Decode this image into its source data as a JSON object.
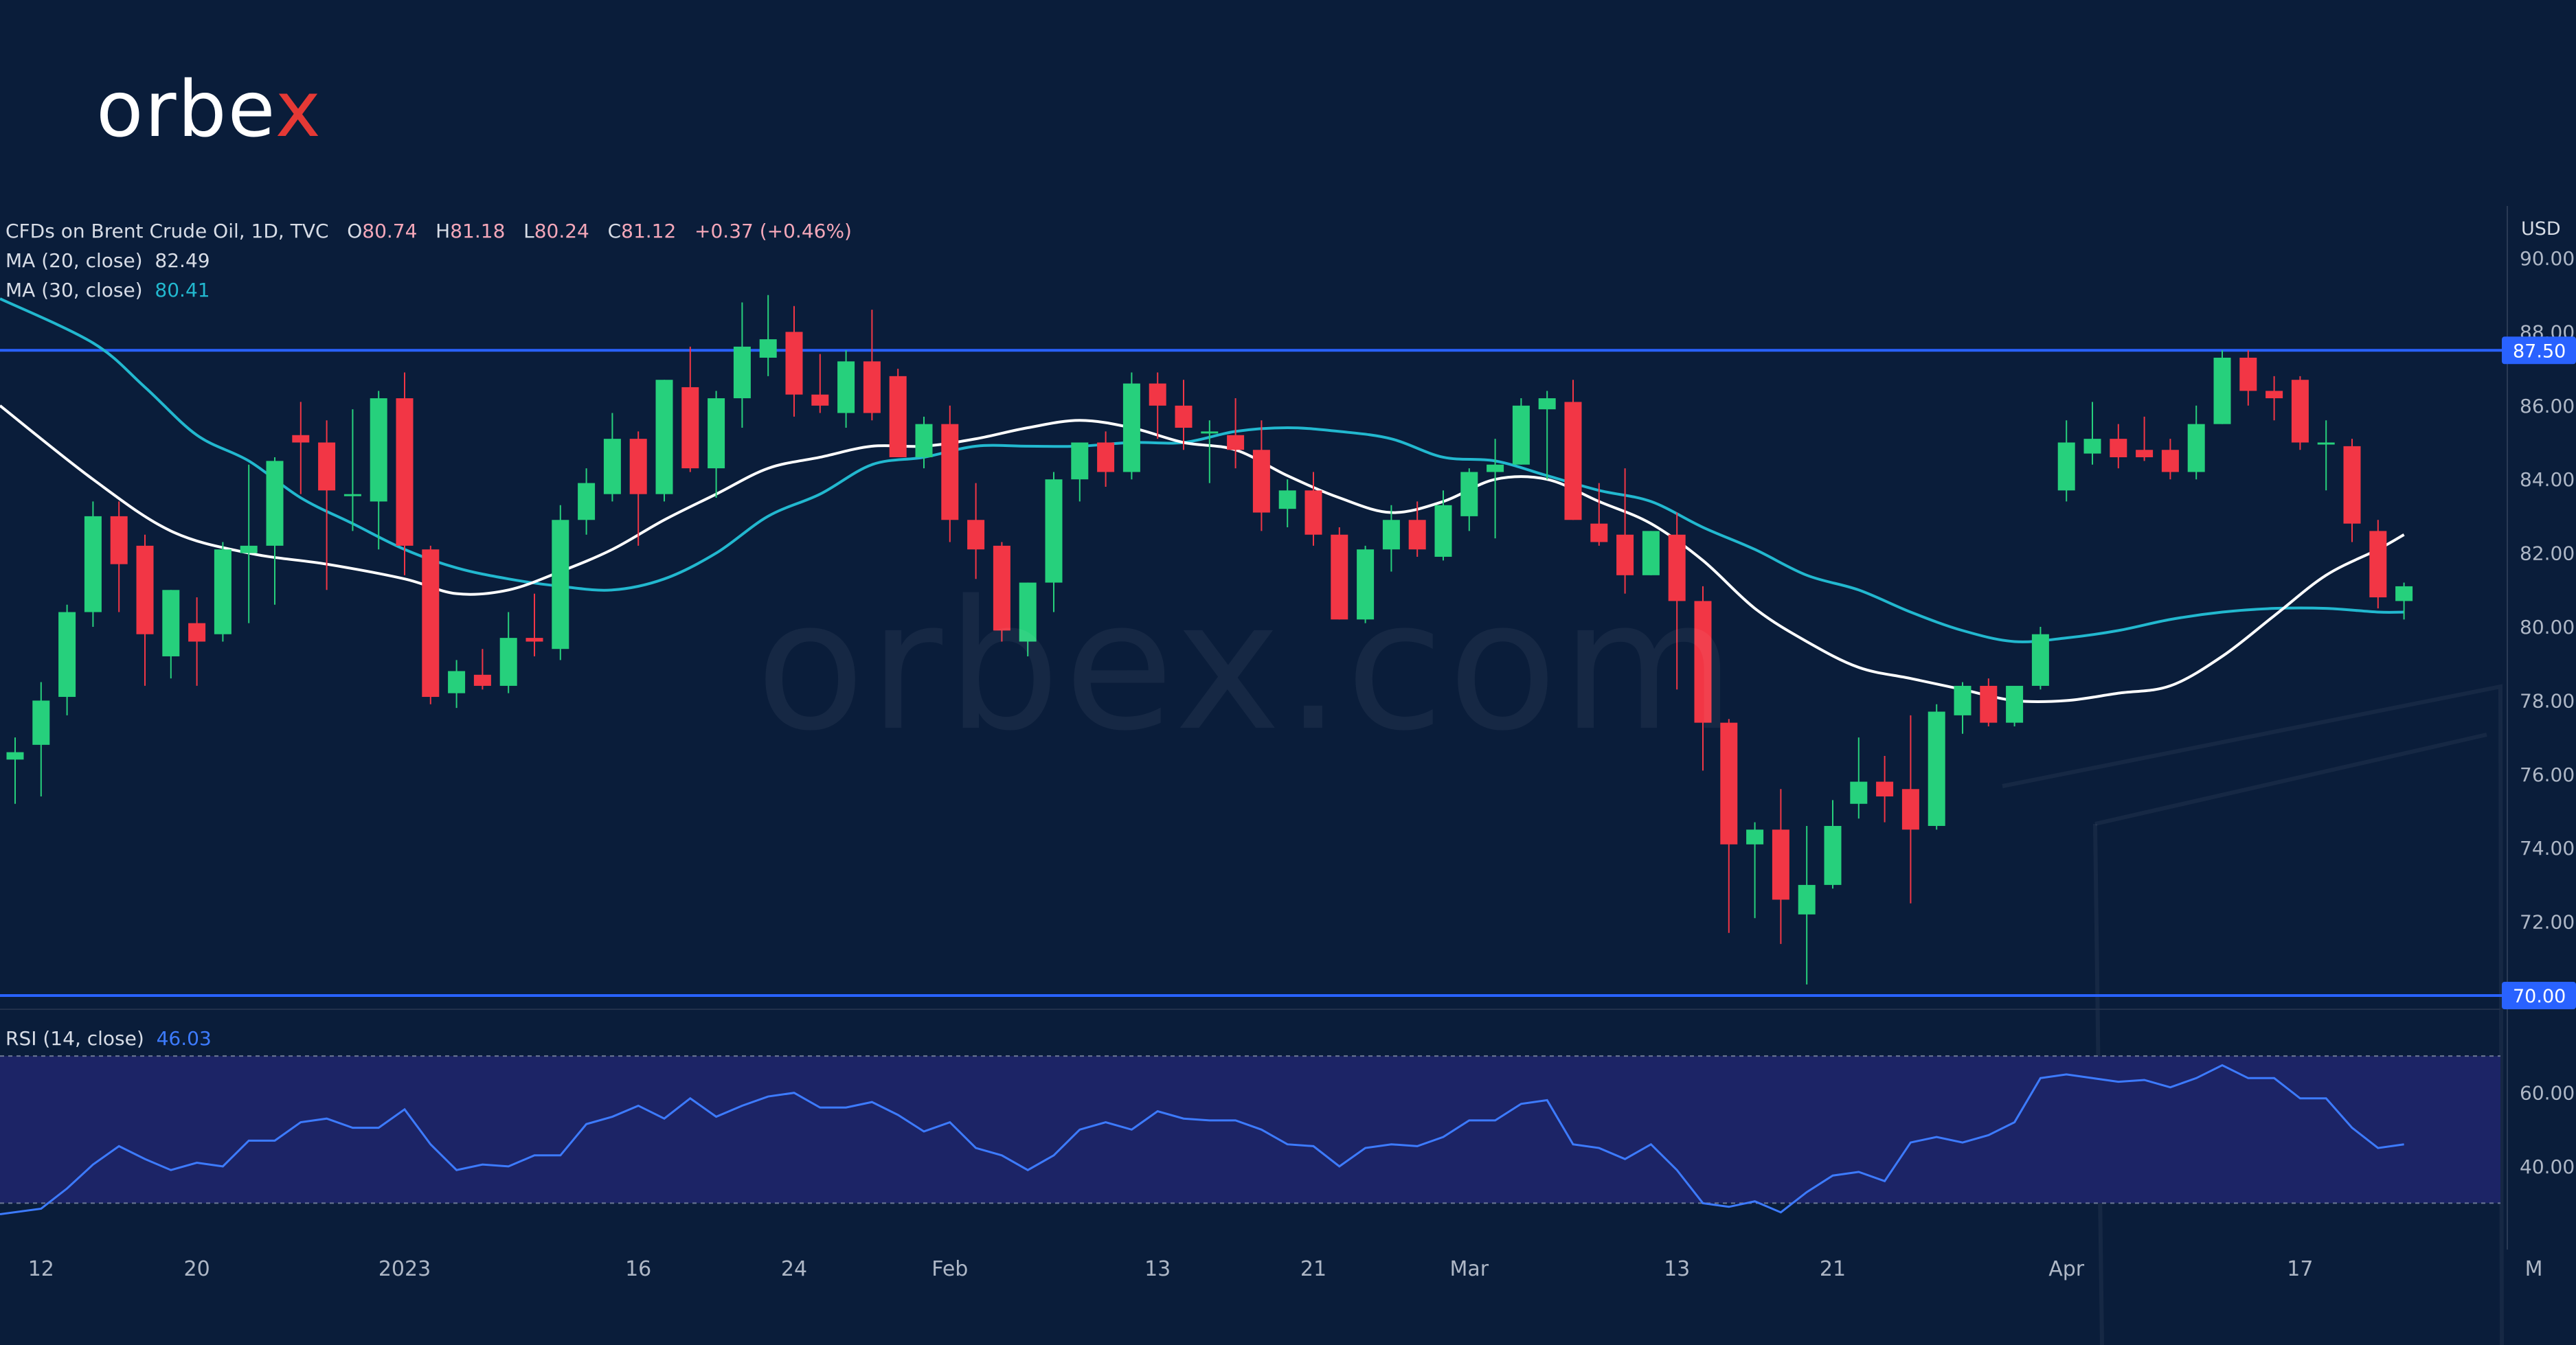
{
  "logo": {
    "text_main": "orbe",
    "text_x": "x"
  },
  "watermark": "orbex.com",
  "legend": {
    "symbol": "CFDs on Brent Crude Oil, 1D, TVC",
    "o_label": "O",
    "o": "80.74",
    "h_label": "H",
    "h": "81.18",
    "l_label": "L",
    "l": "80.24",
    "c_label": "C",
    "c": "81.12",
    "change": "+0.37 (+0.46%)",
    "ma20_label": "MA (20, close)",
    "ma20": "82.49",
    "ma30_label": "MA (30, close)",
    "ma30": "80.41",
    "rsi_label": "RSI (14, close)",
    "rsi": "46.03"
  },
  "colors": {
    "background": "#0a1d3a",
    "up": "#26d07c",
    "down": "#f23645",
    "ma20": "#ffffff",
    "ma30": "#22b8cf",
    "level": "#2962ff",
    "rsi": "#3d7bff",
    "rsi_band": "#1c2466"
  },
  "chart_data": [
    {
      "type": "candlestick",
      "currency": "USD",
      "y_ticks": [
        "90.00",
        "88.00",
        "86.00",
        "84.00",
        "82.00",
        "80.00",
        "78.00",
        "76.00",
        "74.00",
        "72.00"
      ],
      "ylim": [
        69.4,
        91.0
      ],
      "x_ticks": [
        {
          "i": 1,
          "label": "12"
        },
        {
          "i": 7,
          "label": "20"
        },
        {
          "i": 15,
          "label": "2023"
        },
        {
          "i": 24,
          "label": "16"
        },
        {
          "i": 30,
          "label": "24"
        },
        {
          "i": 36,
          "label": "Feb"
        },
        {
          "i": 44,
          "label": "13"
        },
        {
          "i": 50,
          "label": "21"
        },
        {
          "i": 56,
          "label": "Mar"
        },
        {
          "i": 64,
          "label": "13"
        },
        {
          "i": 70,
          "label": "21"
        },
        {
          "i": 79,
          "label": "Apr"
        },
        {
          "i": 88,
          "label": "17"
        },
        {
          "i": 97,
          "label": "M"
        }
      ],
      "levels": [
        {
          "value": 87.5,
          "label": "87.50"
        },
        {
          "value": 70.0,
          "label": "70.00"
        }
      ],
      "candles": [
        {
          "o": 76.4,
          "h": 77.0,
          "l": 75.2,
          "c": 76.6
        },
        {
          "o": 76.8,
          "h": 78.5,
          "l": 75.4,
          "c": 78.0
        },
        {
          "o": 78.1,
          "h": 80.6,
          "l": 77.6,
          "c": 80.4
        },
        {
          "o": 80.4,
          "h": 83.4,
          "l": 80.0,
          "c": 83.0
        },
        {
          "o": 83.0,
          "h": 83.4,
          "l": 80.4,
          "c": 81.7
        },
        {
          "o": 82.2,
          "h": 82.5,
          "l": 78.4,
          "c": 79.8
        },
        {
          "o": 79.2,
          "h": 81.0,
          "l": 78.6,
          "c": 81.0
        },
        {
          "o": 80.1,
          "h": 80.8,
          "l": 78.4,
          "c": 79.6
        },
        {
          "o": 79.8,
          "h": 82.3,
          "l": 79.6,
          "c": 82.1
        },
        {
          "o": 82.0,
          "h": 84.4,
          "l": 80.1,
          "c": 82.2
        },
        {
          "o": 82.2,
          "h": 84.6,
          "l": 80.6,
          "c": 84.5
        },
        {
          "o": 85.2,
          "h": 86.1,
          "l": 83.6,
          "c": 85.0
        },
        {
          "o": 85.0,
          "h": 85.6,
          "l": 81.0,
          "c": 83.7
        },
        {
          "o": 83.6,
          "h": 85.9,
          "l": 82.6,
          "c": 83.6
        },
        {
          "o": 83.4,
          "h": 86.4,
          "l": 82.1,
          "c": 86.2
        },
        {
          "o": 86.2,
          "h": 86.9,
          "l": 81.4,
          "c": 82.2
        },
        {
          "o": 82.1,
          "h": 82.2,
          "l": 77.9,
          "c": 78.1
        },
        {
          "o": 78.2,
          "h": 79.1,
          "l": 77.8,
          "c": 78.8
        },
        {
          "o": 78.7,
          "h": 79.4,
          "l": 78.3,
          "c": 78.4
        },
        {
          "o": 78.4,
          "h": 80.4,
          "l": 78.2,
          "c": 79.7
        },
        {
          "o": 79.7,
          "h": 80.9,
          "l": 79.2,
          "c": 79.6
        },
        {
          "o": 79.4,
          "h": 83.3,
          "l": 79.1,
          "c": 82.9
        },
        {
          "o": 82.9,
          "h": 84.3,
          "l": 82.5,
          "c": 83.9
        },
        {
          "o": 83.6,
          "h": 85.8,
          "l": 83.4,
          "c": 85.1
        },
        {
          "o": 85.1,
          "h": 85.3,
          "l": 82.2,
          "c": 83.6
        },
        {
          "o": 83.6,
          "h": 86.7,
          "l": 83.4,
          "c": 86.7
        },
        {
          "o": 86.5,
          "h": 87.6,
          "l": 84.2,
          "c": 84.3
        },
        {
          "o": 84.3,
          "h": 86.4,
          "l": 83.5,
          "c": 86.2
        },
        {
          "o": 86.2,
          "h": 88.8,
          "l": 85.4,
          "c": 87.6
        },
        {
          "o": 87.3,
          "h": 89.0,
          "l": 86.8,
          "c": 87.8
        },
        {
          "o": 88.0,
          "h": 88.7,
          "l": 85.7,
          "c": 86.3
        },
        {
          "o": 86.3,
          "h": 87.4,
          "l": 85.8,
          "c": 86.0
        },
        {
          "o": 85.8,
          "h": 87.5,
          "l": 85.4,
          "c": 87.2
        },
        {
          "o": 87.2,
          "h": 88.6,
          "l": 85.6,
          "c": 85.8
        },
        {
          "o": 86.8,
          "h": 87.0,
          "l": 84.7,
          "c": 84.6
        },
        {
          "o": 84.6,
          "h": 85.7,
          "l": 84.3,
          "c": 85.5
        },
        {
          "o": 85.5,
          "h": 86.0,
          "l": 82.3,
          "c": 82.9
        },
        {
          "o": 82.9,
          "h": 83.9,
          "l": 81.3,
          "c": 82.1
        },
        {
          "o": 82.2,
          "h": 82.3,
          "l": 79.6,
          "c": 79.9
        },
        {
          "o": 79.6,
          "h": 81.2,
          "l": 79.2,
          "c": 81.2
        },
        {
          "o": 81.2,
          "h": 84.2,
          "l": 80.4,
          "c": 84.0
        },
        {
          "o": 84.0,
          "h": 85.0,
          "l": 83.4,
          "c": 85.0
        },
        {
          "o": 85.0,
          "h": 85.3,
          "l": 83.8,
          "c": 84.2
        },
        {
          "o": 84.2,
          "h": 86.9,
          "l": 84.0,
          "c": 86.6
        },
        {
          "o": 86.6,
          "h": 86.9,
          "l": 85.1,
          "c": 86.0
        },
        {
          "o": 86.0,
          "h": 86.7,
          "l": 84.8,
          "c": 85.4
        },
        {
          "o": 85.3,
          "h": 85.6,
          "l": 83.9,
          "c": 85.3
        },
        {
          "o": 85.2,
          "h": 86.2,
          "l": 84.3,
          "c": 84.8
        },
        {
          "o": 84.8,
          "h": 85.6,
          "l": 82.6,
          "c": 83.1
        },
        {
          "o": 83.2,
          "h": 84.0,
          "l": 82.7,
          "c": 83.7
        },
        {
          "o": 83.7,
          "h": 84.2,
          "l": 82.2,
          "c": 82.5
        },
        {
          "o": 82.5,
          "h": 82.7,
          "l": 80.2,
          "c": 80.2
        },
        {
          "o": 80.2,
          "h": 82.2,
          "l": 80.1,
          "c": 82.1
        },
        {
          "o": 82.1,
          "h": 83.3,
          "l": 81.5,
          "c": 82.9
        },
        {
          "o": 82.9,
          "h": 83.4,
          "l": 81.9,
          "c": 82.1
        },
        {
          "o": 81.9,
          "h": 83.7,
          "l": 81.8,
          "c": 83.3
        },
        {
          "o": 83.0,
          "h": 84.3,
          "l": 82.6,
          "c": 84.2
        },
        {
          "o": 84.2,
          "h": 85.1,
          "l": 82.4,
          "c": 84.4
        },
        {
          "o": 84.4,
          "h": 86.2,
          "l": 84.4,
          "c": 86.0
        },
        {
          "o": 85.9,
          "h": 86.4,
          "l": 84.0,
          "c": 86.2
        },
        {
          "o": 86.1,
          "h": 86.7,
          "l": 82.9,
          "c": 82.9
        },
        {
          "o": 82.8,
          "h": 83.9,
          "l": 82.2,
          "c": 82.3
        },
        {
          "o": 82.5,
          "h": 84.3,
          "l": 80.9,
          "c": 81.4
        },
        {
          "o": 81.4,
          "h": 82.6,
          "l": 81.4,
          "c": 82.6
        },
        {
          "o": 82.5,
          "h": 83.1,
          "l": 78.3,
          "c": 80.7
        },
        {
          "o": 80.7,
          "h": 81.1,
          "l": 76.1,
          "c": 77.4
        },
        {
          "o": 77.4,
          "h": 77.5,
          "l": 71.7,
          "c": 74.1
        },
        {
          "o": 74.1,
          "h": 74.7,
          "l": 72.1,
          "c": 74.5
        },
        {
          "o": 74.5,
          "h": 75.6,
          "l": 71.4,
          "c": 72.6
        },
        {
          "o": 72.2,
          "h": 74.6,
          "l": 70.3,
          "c": 73.0
        },
        {
          "o": 73.0,
          "h": 75.3,
          "l": 72.9,
          "c": 74.6
        },
        {
          "o": 75.2,
          "h": 77.0,
          "l": 74.8,
          "c": 75.8
        },
        {
          "o": 75.8,
          "h": 76.5,
          "l": 74.7,
          "c": 75.4
        },
        {
          "o": 75.6,
          "h": 77.6,
          "l": 72.5,
          "c": 74.5
        },
        {
          "o": 74.6,
          "h": 77.9,
          "l": 74.5,
          "c": 77.7
        },
        {
          "o": 77.6,
          "h": 78.5,
          "l": 77.1,
          "c": 78.4
        },
        {
          "o": 78.4,
          "h": 78.6,
          "l": 77.3,
          "c": 77.4
        },
        {
          "o": 77.4,
          "h": 78.3,
          "l": 77.3,
          "c": 78.4
        },
        {
          "o": 78.4,
          "h": 80.0,
          "l": 78.3,
          "c": 79.8
        },
        {
          "o": 83.7,
          "h": 85.6,
          "l": 83.4,
          "c": 85.0
        },
        {
          "o": 84.7,
          "h": 86.1,
          "l": 84.4,
          "c": 85.1
        },
        {
          "o": 85.1,
          "h": 85.5,
          "l": 84.3,
          "c": 84.6
        },
        {
          "o": 84.8,
          "h": 85.7,
          "l": 84.5,
          "c": 84.6
        },
        {
          "o": 84.8,
          "h": 85.1,
          "l": 84.0,
          "c": 84.2
        },
        {
          "o": 84.2,
          "h": 86.0,
          "l": 84.0,
          "c": 85.5
        },
        {
          "o": 85.5,
          "h": 87.5,
          "l": 85.5,
          "c": 87.3
        },
        {
          "o": 87.3,
          "h": 87.5,
          "l": 86.0,
          "c": 86.4
        },
        {
          "o": 86.4,
          "h": 86.8,
          "l": 85.6,
          "c": 86.2
        },
        {
          "o": 86.7,
          "h": 86.8,
          "l": 84.8,
          "c": 85.0
        },
        {
          "o": 85.0,
          "h": 85.6,
          "l": 83.7,
          "c": 85.0
        },
        {
          "o": 84.9,
          "h": 85.1,
          "l": 82.3,
          "c": 82.8
        },
        {
          "o": 82.6,
          "h": 82.9,
          "l": 80.5,
          "c": 80.8
        },
        {
          "o": 80.7,
          "h": 81.2,
          "l": 80.2,
          "c": 81.1
        }
      ],
      "ma20": [
        {
          "i": 0,
          "v": 86.0
        },
        {
          "i": 3,
          "v": 84.0
        },
        {
          "i": 6,
          "v": 82.6
        },
        {
          "i": 9,
          "v": 82.0
        },
        {
          "i": 12,
          "v": 81.7
        },
        {
          "i": 15,
          "v": 81.3
        },
        {
          "i": 17,
          "v": 80.9
        },
        {
          "i": 19,
          "v": 81.0
        },
        {
          "i": 21,
          "v": 81.5
        },
        {
          "i": 23,
          "v": 82.1
        },
        {
          "i": 25,
          "v": 82.9
        },
        {
          "i": 27,
          "v": 83.6
        },
        {
          "i": 29,
          "v": 84.3
        },
        {
          "i": 31,
          "v": 84.6
        },
        {
          "i": 33,
          "v": 84.9
        },
        {
          "i": 35,
          "v": 84.9
        },
        {
          "i": 37,
          "v": 85.1
        },
        {
          "i": 39,
          "v": 85.4
        },
        {
          "i": 41,
          "v": 85.6
        },
        {
          "i": 43,
          "v": 85.4
        },
        {
          "i": 45,
          "v": 85.0
        },
        {
          "i": 47,
          "v": 84.8
        },
        {
          "i": 49,
          "v": 84.1
        },
        {
          "i": 51,
          "v": 83.5
        },
        {
          "i": 53,
          "v": 83.1
        },
        {
          "i": 55,
          "v": 83.4
        },
        {
          "i": 57,
          "v": 84.0
        },
        {
          "i": 59,
          "v": 84.0
        },
        {
          "i": 61,
          "v": 83.4
        },
        {
          "i": 63,
          "v": 82.8
        },
        {
          "i": 65,
          "v": 81.8
        },
        {
          "i": 67,
          "v": 80.5
        },
        {
          "i": 69,
          "v": 79.6
        },
        {
          "i": 71,
          "v": 78.9
        },
        {
          "i": 73,
          "v": 78.6
        },
        {
          "i": 75,
          "v": 78.3
        },
        {
          "i": 77,
          "v": 78.0
        },
        {
          "i": 79,
          "v": 78.0
        },
        {
          "i": 81,
          "v": 78.2
        },
        {
          "i": 83,
          "v": 78.4
        },
        {
          "i": 85,
          "v": 79.2
        },
        {
          "i": 87,
          "v": 80.3
        },
        {
          "i": 89,
          "v": 81.4
        },
        {
          "i": 91,
          "v": 82.1
        },
        {
          "i": 92,
          "v": 82.5
        }
      ],
      "ma30": [
        {
          "i": 0,
          "v": 88.9
        },
        {
          "i": 3,
          "v": 87.7
        },
        {
          "i": 5,
          "v": 86.5
        },
        {
          "i": 7,
          "v": 85.2
        },
        {
          "i": 9,
          "v": 84.5
        },
        {
          "i": 11,
          "v": 83.5
        },
        {
          "i": 13,
          "v": 82.8
        },
        {
          "i": 15,
          "v": 82.1
        },
        {
          "i": 17,
          "v": 81.6
        },
        {
          "i": 19,
          "v": 81.3
        },
        {
          "i": 21,
          "v": 81.1
        },
        {
          "i": 23,
          "v": 81.0
        },
        {
          "i": 25,
          "v": 81.3
        },
        {
          "i": 27,
          "v": 82.0
        },
        {
          "i": 29,
          "v": 83.0
        },
        {
          "i": 31,
          "v": 83.6
        },
        {
          "i": 33,
          "v": 84.4
        },
        {
          "i": 35,
          "v": 84.6
        },
        {
          "i": 37,
          "v": 84.9
        },
        {
          "i": 39,
          "v": 84.9
        },
        {
          "i": 41,
          "v": 84.9
        },
        {
          "i": 43,
          "v": 85.0
        },
        {
          "i": 45,
          "v": 85.0
        },
        {
          "i": 47,
          "v": 85.3
        },
        {
          "i": 49,
          "v": 85.4
        },
        {
          "i": 51,
          "v": 85.3
        },
        {
          "i": 53,
          "v": 85.1
        },
        {
          "i": 55,
          "v": 84.6
        },
        {
          "i": 57,
          "v": 84.5
        },
        {
          "i": 59,
          "v": 84.1
        },
        {
          "i": 61,
          "v": 83.7
        },
        {
          "i": 63,
          "v": 83.4
        },
        {
          "i": 65,
          "v": 82.7
        },
        {
          "i": 67,
          "v": 82.1
        },
        {
          "i": 69,
          "v": 81.4
        },
        {
          "i": 71,
          "v": 81.0
        },
        {
          "i": 73,
          "v": 80.4
        },
        {
          "i": 75,
          "v": 79.9
        },
        {
          "i": 77,
          "v": 79.6
        },
        {
          "i": 79,
          "v": 79.7
        },
        {
          "i": 81,
          "v": 79.9
        },
        {
          "i": 83,
          "v": 80.2
        },
        {
          "i": 85,
          "v": 80.4
        },
        {
          "i": 87,
          "v": 80.5
        },
        {
          "i": 89,
          "v": 80.5
        },
        {
          "i": 91,
          "v": 80.4
        },
        {
          "i": 92,
          "v": 80.4
        }
      ]
    },
    {
      "type": "line",
      "name": "RSI (14, close)",
      "y_ticks": [
        "60.00",
        "40.00"
      ],
      "ylim": [
        20,
        76
      ],
      "band": [
        30,
        70
      ],
      "values": [
        27.0,
        28.5,
        34,
        40.5,
        45.5,
        42,
        39,
        41,
        40,
        47,
        47,
        52,
        53,
        50.5,
        50.5,
        55.5,
        46,
        39,
        40.5,
        40,
        43,
        43,
        51.5,
        53.5,
        56.5,
        53,
        58.5,
        53.5,
        56.5,
        59,
        60,
        56,
        56,
        57.5,
        54,
        49.5,
        52,
        45,
        43,
        39,
        43,
        50,
        52,
        50,
        55,
        53,
        52.5,
        52.5,
        50,
        46,
        45.5,
        40,
        45,
        46,
        45.5,
        48,
        52.5,
        52.5,
        57,
        58,
        46,
        45,
        42,
        46,
        39,
        30,
        29,
        30.5,
        27.5,
        33,
        37.5,
        38.5,
        36,
        46.5,
        48,
        46.5,
        48.5,
        52,
        64,
        65,
        64,
        63,
        63.5,
        61.5,
        64,
        67.5,
        64,
        64,
        58.5,
        58.5,
        50.5,
        45,
        46
      ]
    }
  ]
}
